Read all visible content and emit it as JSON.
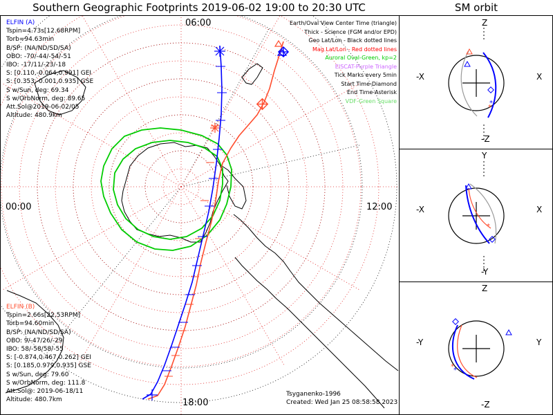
{
  "title": "Southern Geographic Footprints 2019-06-02 19:00 to 20:30 UTC",
  "orbit_title": "SM orbit",
  "hour_labels": {
    "top": "06:00",
    "left": "00:00",
    "right": "12:00",
    "bottom": "18:00"
  },
  "colors": {
    "probe_a": "#0000ff",
    "probe_b": "#ff4d2e",
    "grid_geo": "#000000",
    "grid_mag": "#e02020",
    "auroral_oval": "#00cc00",
    "land": "#000000"
  },
  "elfin_a": {
    "name": "ELFIN (A)",
    "lines": [
      "Tspin=4.73s[12.68RPM]",
      "Torb=94.63min",
      "B/SP: (NA/ND/SD/SA)",
      "OBO: -70/-44/-54/-51",
      "IBO: -17/11/-23/-18",
      "S: [0.110,-0.064,0.991] GEI",
      "S: [0.353,-0.001,0.935] GSE",
      "S w/Sun, deg: 69.34",
      "S w/OrbNorm, deg: 89.65",
      "Att.Sol@2019-06-02/05",
      "Altitude: 480.9km"
    ]
  },
  "elfin_b": {
    "name": "ELFIN (B)",
    "lines": [
      "Tspin=2.66s[22.53RPM]",
      "Torb=94.60min",
      "B/SP: (NA/ND/SD/SA)",
      "OBO: 9/-47/26/-29",
      "IBO: 58/-58/58/-55",
      "S: [-0.874,0.467,0.262] GEI",
      "S: [0.185,0.979,0.935] GSE",
      "S w/Sun, deg: 79.60",
      "S w/OrbNorm, deg: 111.8",
      "Att.Sol@: 2019-06-18/11",
      "Altitude: 480.7km"
    ]
  },
  "legend": [
    {
      "text": "Earth/Oval View Center Time (triangle)",
      "color": "#000000"
    },
    {
      "text": "Thick - Science (FGM and/or EPD)",
      "color": "#000000"
    },
    {
      "text": "Geo Lat/Lon - Black dotted lines",
      "color": "#000000"
    },
    {
      "text": "Mag Lat/Lon - Red dotted lines",
      "color": "#ff0000"
    },
    {
      "text": "Auroral Oval-Green, kp=2",
      "color": "#00cc00"
    },
    {
      "text": "EISCAT-Purple Triangle",
      "color": "#cc66ff"
    },
    {
      "text": "Tick Marks every 5min",
      "color": "#000000"
    },
    {
      "text": "Start Time-Diamond",
      "color": "#000000"
    },
    {
      "text": "End Time-Asterisk",
      "color": "#000000"
    },
    {
      "text": "VDF-Green Square",
      "color": "#66dd66"
    }
  ],
  "footer": {
    "model": "Tsyganenko-1996",
    "created": "Created: Wed Jan 25 08:58:58 2023"
  },
  "sm_panels": [
    {
      "id": "xz",
      "top": "Z",
      "bottom": "-Z",
      "left": "-X",
      "right": "X"
    },
    {
      "id": "xy",
      "top": "Y",
      "bottom": "-Y",
      "left": "-X",
      "right": "X"
    },
    {
      "id": "yz",
      "top": "Z",
      "bottom": "-Z",
      "left": "-Y",
      "right": "Y"
    }
  ]
}
